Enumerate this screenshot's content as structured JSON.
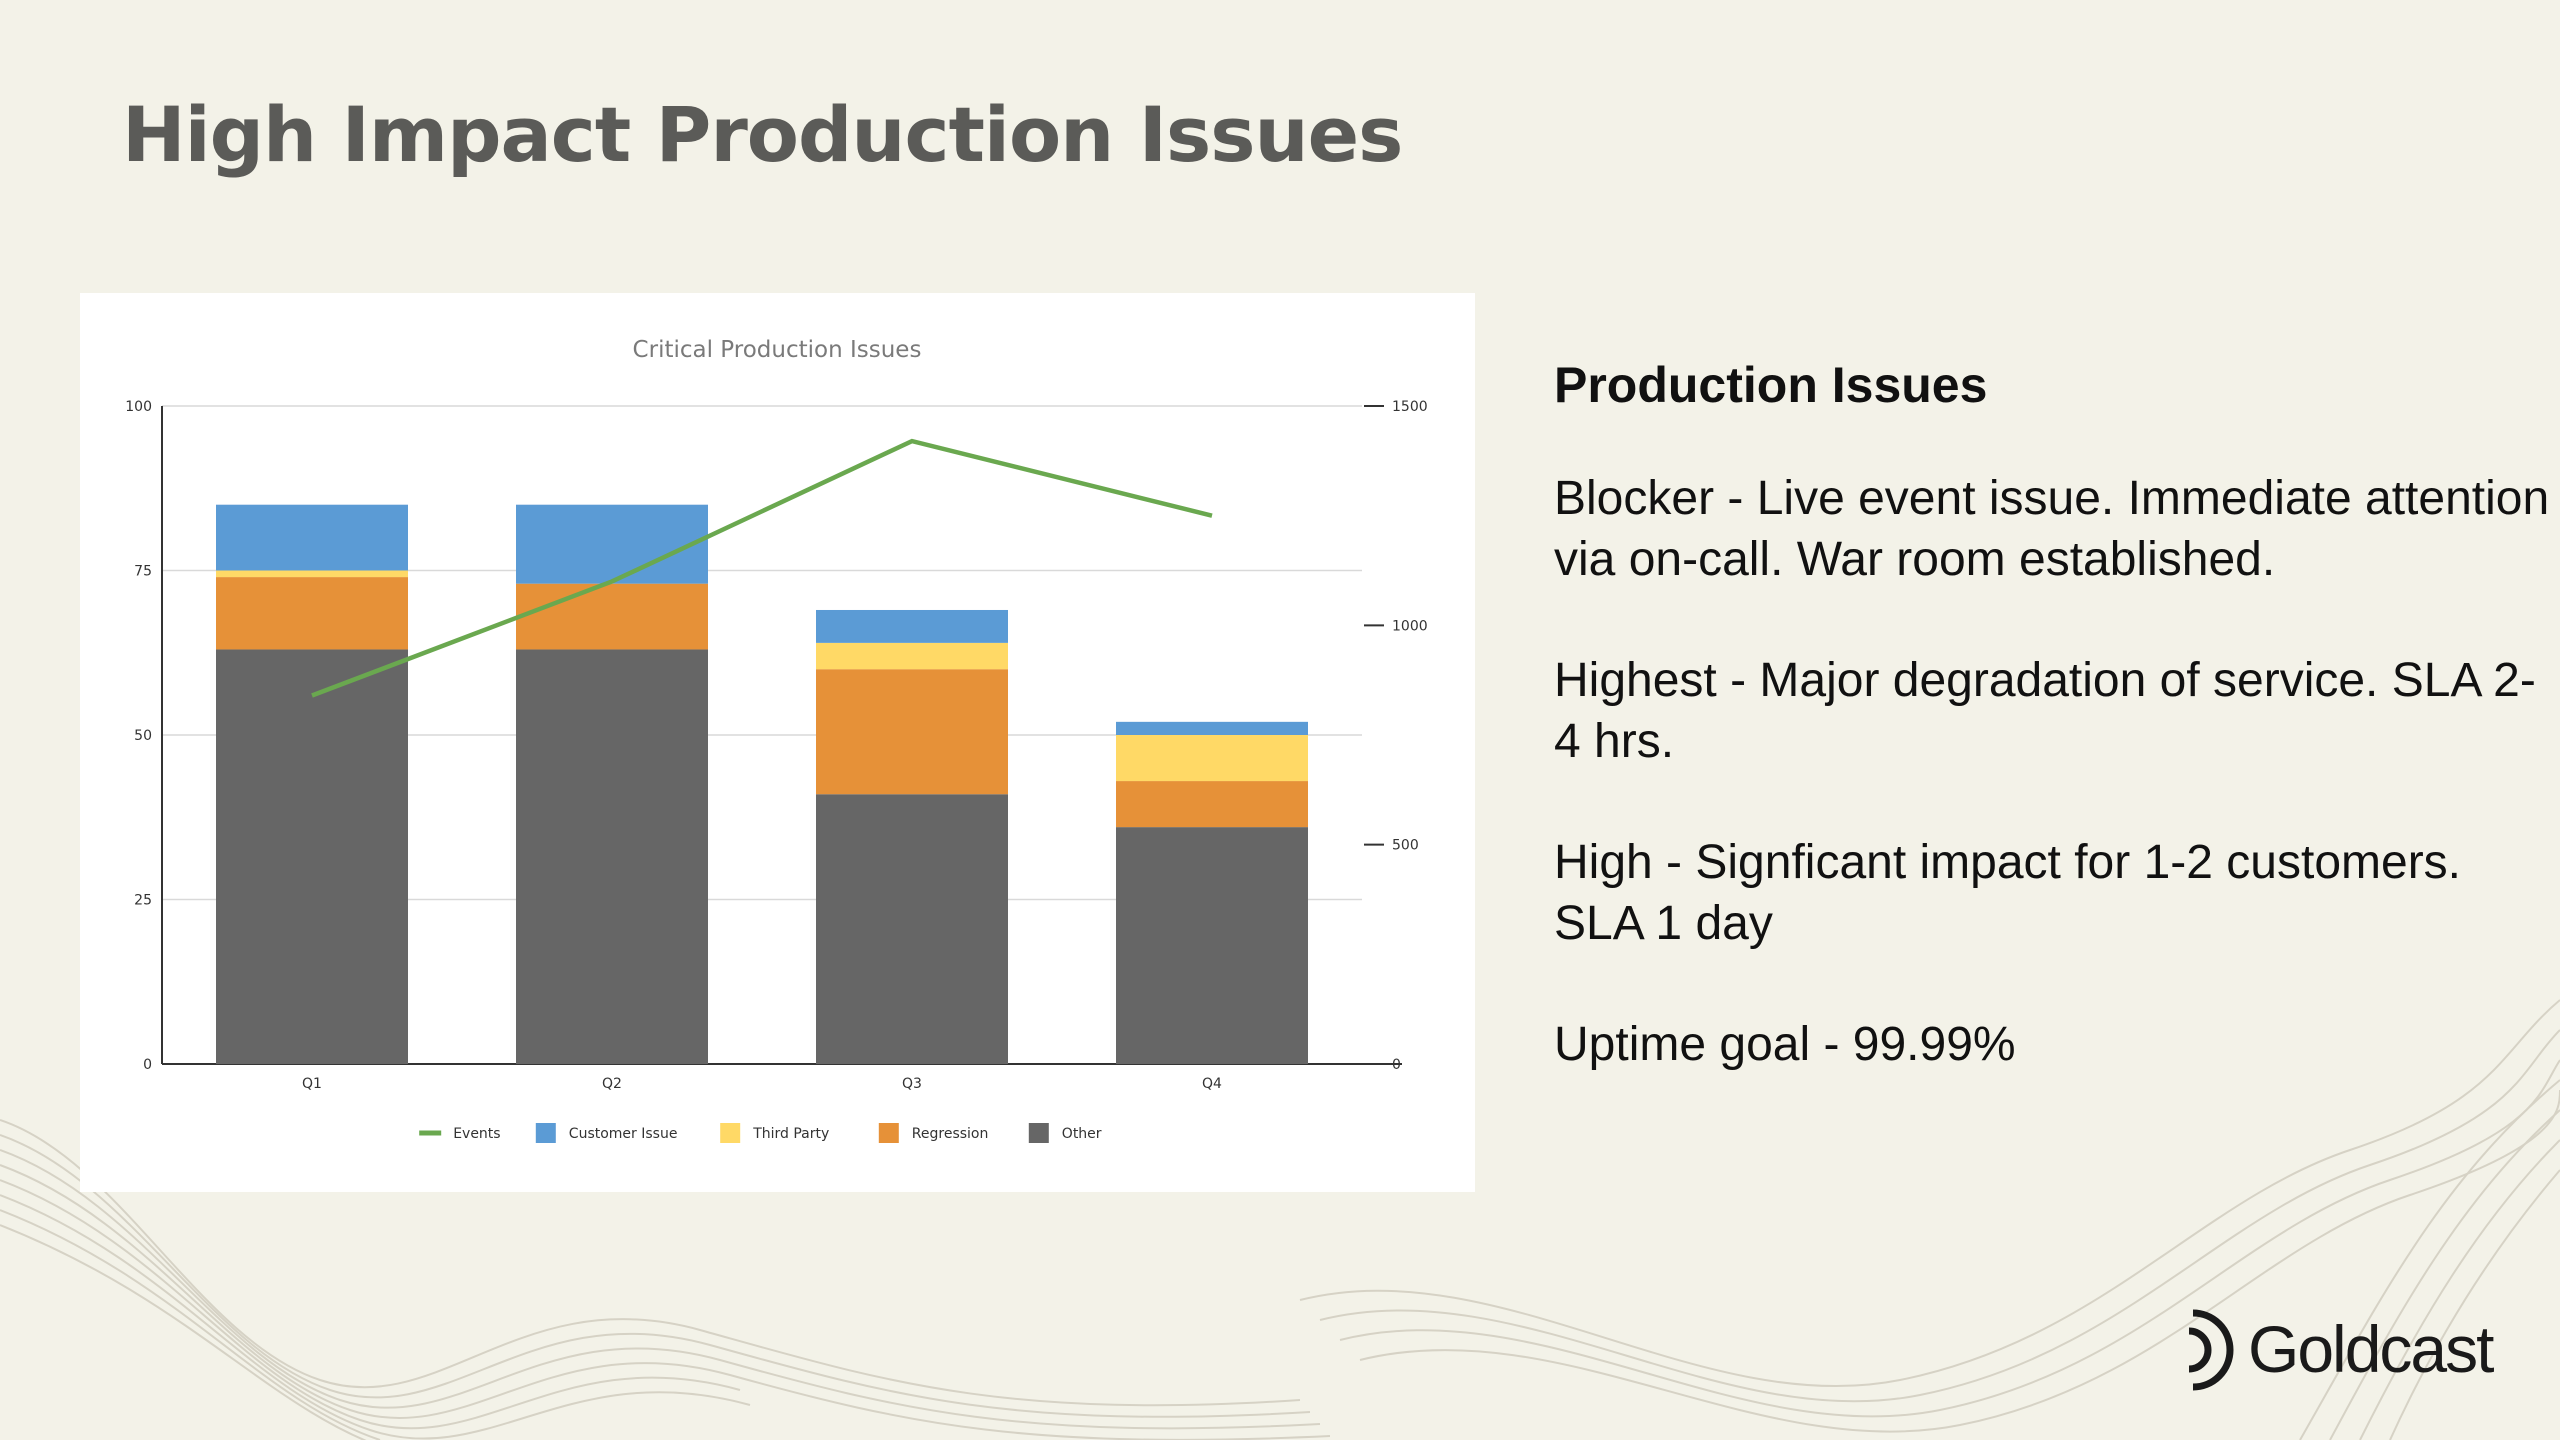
{
  "slide": {
    "title": "High Impact Production Issues"
  },
  "panel": {
    "heading": "Production Issues",
    "paragraphs": [
      "Blocker - Live event issue. Immediate attention via on-call. War room established.",
      "Highest - Major degradation of service. SLA 2-4 hrs.",
      "High - Signficant impact for 1-2 customers. SLA 1 day",
      "Uptime goal - 99.99%"
    ]
  },
  "logo": {
    "text": "Goldcast",
    "icon": "goldcast-logo-icon"
  },
  "colors": {
    "background": "#f3f2e8",
    "events": "#6aa84f",
    "customer_issue": "#5b9bd5",
    "third_party": "#ffd966",
    "regression": "#e69138",
    "other": "#666666"
  },
  "chart_data": {
    "type": "bar",
    "stacked": true,
    "title": "Critical Production Issues",
    "categories": [
      "Q1",
      "Q2",
      "Q3",
      "Q4"
    ],
    "ylim": [
      0,
      100
    ],
    "yticks": [
      0,
      25,
      50,
      75,
      100
    ],
    "y2lim": [
      0,
      1500
    ],
    "y2ticks": [
      0,
      500,
      1000,
      1500
    ],
    "grid": true,
    "legend_position": "bottom",
    "series": [
      {
        "name": "Other",
        "kind": "bar",
        "axis": "left",
        "color": "#666666",
        "values": [
          63,
          63,
          41,
          36
        ]
      },
      {
        "name": "Regression",
        "kind": "bar",
        "axis": "left",
        "color": "#e69138",
        "values": [
          11,
          10,
          19,
          7
        ]
      },
      {
        "name": "Third Party",
        "kind": "bar",
        "axis": "left",
        "color": "#ffd966",
        "values": [
          1,
          0,
          4,
          7
        ]
      },
      {
        "name": "Customer Issue",
        "kind": "bar",
        "axis": "left",
        "color": "#5b9bd5",
        "values": [
          10,
          12,
          5,
          2
        ]
      },
      {
        "name": "Events",
        "kind": "line",
        "axis": "right",
        "color": "#6aa84f",
        "values": [
          840,
          1100,
          1420,
          1250
        ]
      }
    ],
    "legend_order": [
      "Events",
      "Customer Issue",
      "Third Party",
      "Regression",
      "Other"
    ]
  }
}
